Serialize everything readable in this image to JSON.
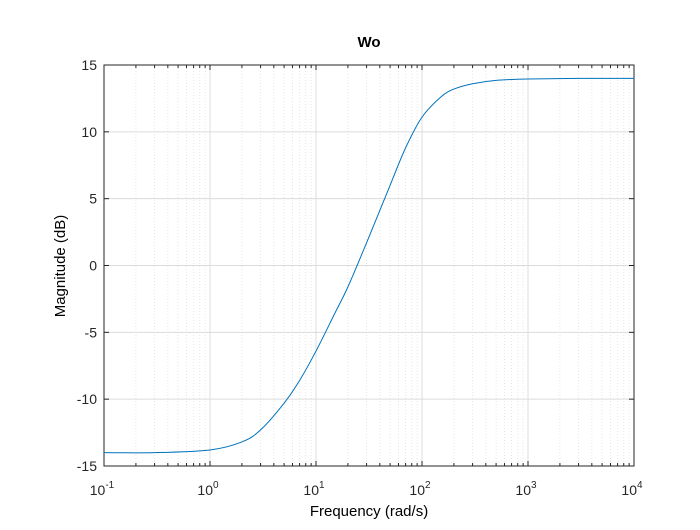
{
  "chart_data": {
    "type": "line",
    "title": "Wo",
    "xlabel": "Frequency  (rad/s)",
    "ylabel": "Magnitude (dB)",
    "x_scale": "log",
    "xlim": [
      0.1,
      10000
    ],
    "ylim": [
      -15,
      15
    ],
    "x_ticks": [
      {
        "value": 0.1,
        "base": "10",
        "exp": "-1"
      },
      {
        "value": 1,
        "base": "10",
        "exp": "0"
      },
      {
        "value": 10,
        "base": "10",
        "exp": "1"
      },
      {
        "value": 100,
        "base": "10",
        "exp": "2"
      },
      {
        "value": 1000,
        "base": "10",
        "exp": "3"
      },
      {
        "value": 10000,
        "base": "10",
        "exp": "4"
      }
    ],
    "y_ticks": [
      15,
      10,
      5,
      0,
      -5,
      -10,
      -15
    ],
    "grid": true,
    "minor_grid": true,
    "series": [
      {
        "color": "#0072BD",
        "x": [
          0.1,
          0.3,
          1,
          2,
          3,
          5,
          7,
          10,
          15,
          20,
          30,
          50,
          70,
          100,
          150,
          200,
          300,
          500,
          1000,
          3000,
          10000
        ],
        "y": [
          -14.0,
          -14.0,
          -13.8,
          -13.2,
          -12.3,
          -10.3,
          -8.6,
          -6.4,
          -3.6,
          -1.6,
          1.7,
          6.0,
          8.8,
          11.1,
          12.6,
          13.2,
          13.6,
          13.85,
          13.95,
          14.0,
          14.0
        ]
      }
    ]
  }
}
